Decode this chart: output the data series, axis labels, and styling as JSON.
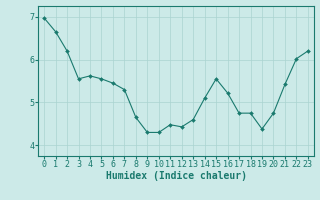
{
  "x": [
    0,
    1,
    2,
    3,
    4,
    5,
    6,
    7,
    8,
    9,
    10,
    11,
    12,
    13,
    14,
    15,
    16,
    17,
    18,
    19,
    20,
    21,
    22,
    23
  ],
  "y": [
    6.97,
    6.65,
    6.2,
    5.55,
    5.62,
    5.55,
    5.45,
    5.3,
    4.65,
    4.3,
    4.3,
    4.48,
    4.43,
    4.6,
    5.1,
    5.55,
    5.22,
    4.75,
    4.75,
    4.38,
    4.75,
    5.42,
    6.02,
    6.2
  ],
  "line_color": "#1a7a6e",
  "marker": "D",
  "marker_size": 2.0,
  "bg_color": "#cceae8",
  "grid_color": "#aad4d0",
  "xlabel": "Humidex (Indice chaleur)",
  "xlabel_fontsize": 7,
  "tick_fontsize": 6,
  "ylim": [
    3.75,
    7.25
  ],
  "xlim": [
    -0.5,
    23.5
  ],
  "yticks": [
    4,
    5,
    6,
    7
  ],
  "xticks": [
    0,
    1,
    2,
    3,
    4,
    5,
    6,
    7,
    8,
    9,
    10,
    11,
    12,
    13,
    14,
    15,
    16,
    17,
    18,
    19,
    20,
    21,
    22,
    23
  ]
}
